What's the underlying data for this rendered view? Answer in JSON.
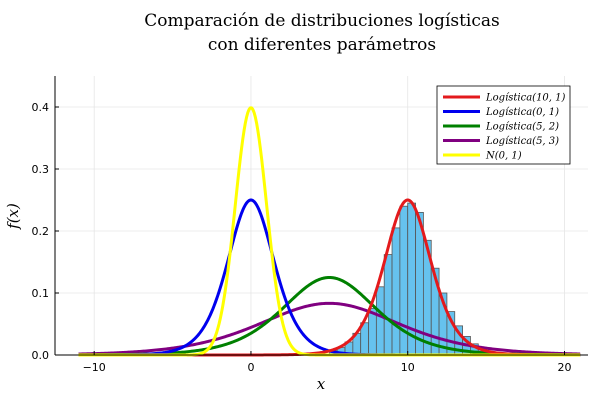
{
  "chart_data": {
    "type": "line",
    "title_lines": [
      "Comparación de distribuciones logísticas",
      "con diferentes parámetros"
    ],
    "xlabel": "x",
    "ylabel": "f(x)",
    "xlim": [
      -12.5,
      21.5
    ],
    "ylim": [
      0,
      0.45
    ],
    "xticks": [
      -10,
      0,
      10,
      20
    ],
    "xtick_labels": [
      "−10",
      "0",
      "10",
      "20"
    ],
    "yticks": [
      0.0,
      0.1,
      0.2,
      0.3,
      0.4
    ],
    "ytick_labels": [
      "0.0",
      "0.1",
      "0.2",
      "0.3",
      "0.4"
    ],
    "grid": true,
    "legend_position": "top-right",
    "series": [
      {
        "name": "Logística(10, 1)",
        "dist": "logistic",
        "mu": 10,
        "s": 1,
        "color": "#e31a1c"
      },
      {
        "name": "Logística(0, 1)",
        "dist": "logistic",
        "mu": 0,
        "s": 1,
        "color": "#0000ee"
      },
      {
        "name": "Logística(5, 2)",
        "dist": "logistic",
        "mu": 5,
        "s": 2,
        "color": "#008000"
      },
      {
        "name": "Logística(5, 3)",
        "dist": "logistic",
        "mu": 5,
        "s": 3,
        "color": "#800080"
      },
      {
        "name": "N(0, 1)",
        "dist": "normal",
        "mu": 0,
        "s": 1,
        "color": "#ffff00"
      }
    ],
    "histogram": {
      "color": "#66c2ee",
      "edge_color": "#555555",
      "bin_width": 0.5,
      "bins_start": [
        5.0,
        5.5,
        6.0,
        6.5,
        7.0,
        7.5,
        8.0,
        8.5,
        9.0,
        9.5,
        10.0,
        10.5,
        11.0,
        11.5,
        12.0,
        12.5,
        13.0,
        13.5,
        14.0,
        14.5,
        15.0
      ],
      "values": [
        0.007,
        0.012,
        0.021,
        0.035,
        0.052,
        0.075,
        0.11,
        0.162,
        0.205,
        0.24,
        0.245,
        0.23,
        0.185,
        0.14,
        0.1,
        0.07,
        0.047,
        0.03,
        0.018,
        0.01,
        0.005
      ]
    }
  }
}
